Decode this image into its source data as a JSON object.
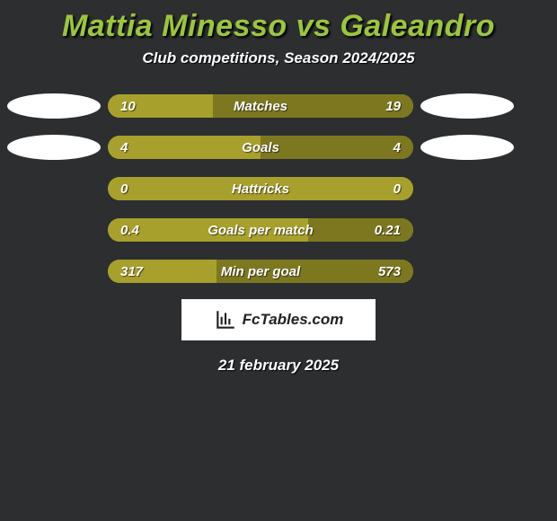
{
  "title": "Mattia Minesso vs Galeandro",
  "subtitle": "Club competitions, Season 2024/2025",
  "footnote": "21 february 2025",
  "watermark": "FcTables.com",
  "colors": {
    "title": "#9bc53d",
    "background": "#2c2e30",
    "bar_primary": "#a8a02c",
    "bar_secondary": "#7d7820",
    "text": "#ffffff"
  },
  "rows": [
    {
      "label": "Matches",
      "left_value": "10",
      "right_value": "19",
      "show_left_flag": true,
      "show_right_flag": true,
      "left_color": "#a8a02c",
      "right_color": "#7d7820",
      "left_pct": 34.5,
      "right_pct": 65.5
    },
    {
      "label": "Goals",
      "left_value": "4",
      "right_value": "4",
      "show_left_flag": true,
      "show_right_flag": true,
      "left_color": "#a8a02c",
      "right_color": "#7d7820",
      "left_pct": 50,
      "right_pct": 50
    },
    {
      "label": "Hattricks",
      "left_value": "0",
      "right_value": "0",
      "show_left_flag": false,
      "show_right_flag": false,
      "left_color": "#a8a02c",
      "right_color": "#a8a02c",
      "left_pct": 50,
      "right_pct": 50
    },
    {
      "label": "Goals per match",
      "left_value": "0.4",
      "right_value": "0.21",
      "show_left_flag": false,
      "show_right_flag": false,
      "left_color": "#a8a02c",
      "right_color": "#7d7820",
      "left_pct": 65.6,
      "right_pct": 34.4
    },
    {
      "label": "Min per goal",
      "left_value": "317",
      "right_value": "573",
      "show_left_flag": false,
      "show_right_flag": false,
      "left_color": "#a8a02c",
      "right_color": "#7d7820",
      "left_pct": 35.6,
      "right_pct": 64.4
    }
  ]
}
